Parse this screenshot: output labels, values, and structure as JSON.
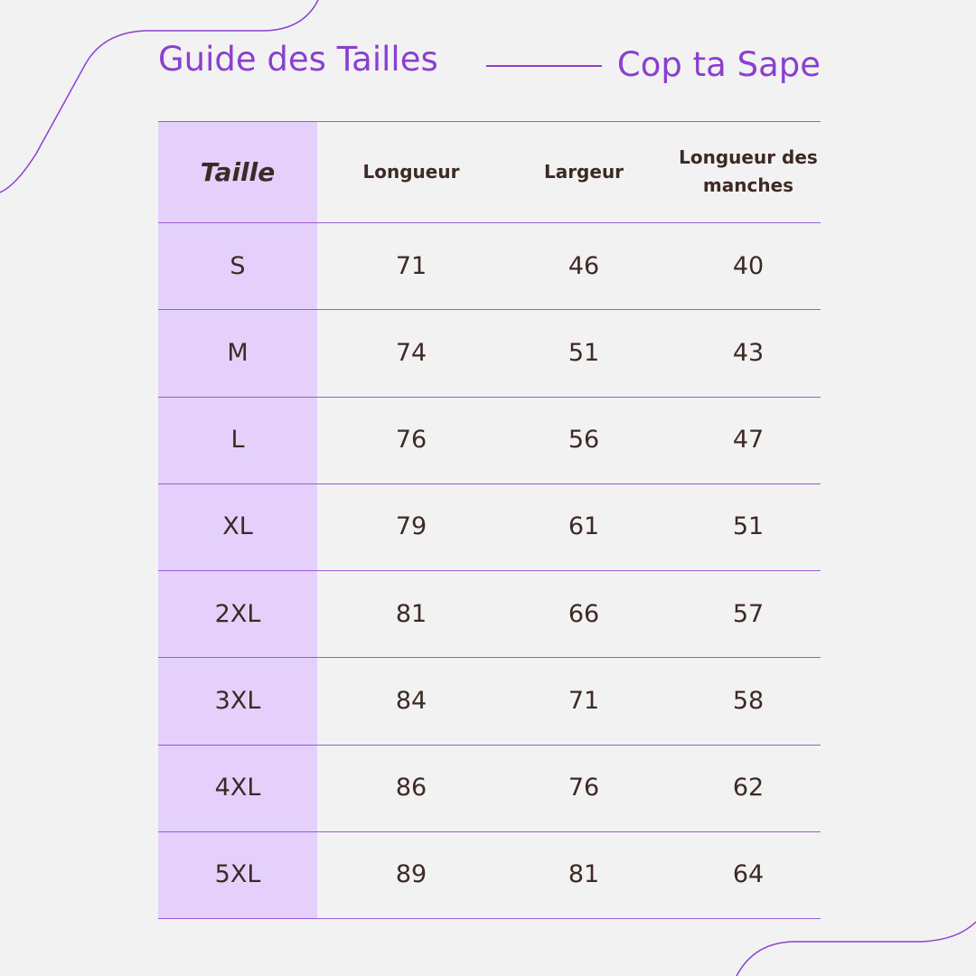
{
  "header": {
    "title": "Guide des Tailles",
    "brand": "Cop ta Sape"
  },
  "table": {
    "columns": [
      "Taille",
      "Longueur",
      "Largeur",
      "Longueur des manches"
    ],
    "rows": [
      [
        "S",
        71,
        46,
        40
      ],
      [
        "M",
        74,
        51,
        43
      ],
      [
        "L",
        76,
        56,
        47
      ],
      [
        "XL",
        79,
        61,
        51
      ],
      [
        "2XL",
        81,
        66,
        57
      ],
      [
        "3XL",
        84,
        71,
        58
      ],
      [
        "4XL",
        86,
        76,
        62
      ],
      [
        "5XL",
        89,
        81,
        64
      ]
    ]
  }
}
